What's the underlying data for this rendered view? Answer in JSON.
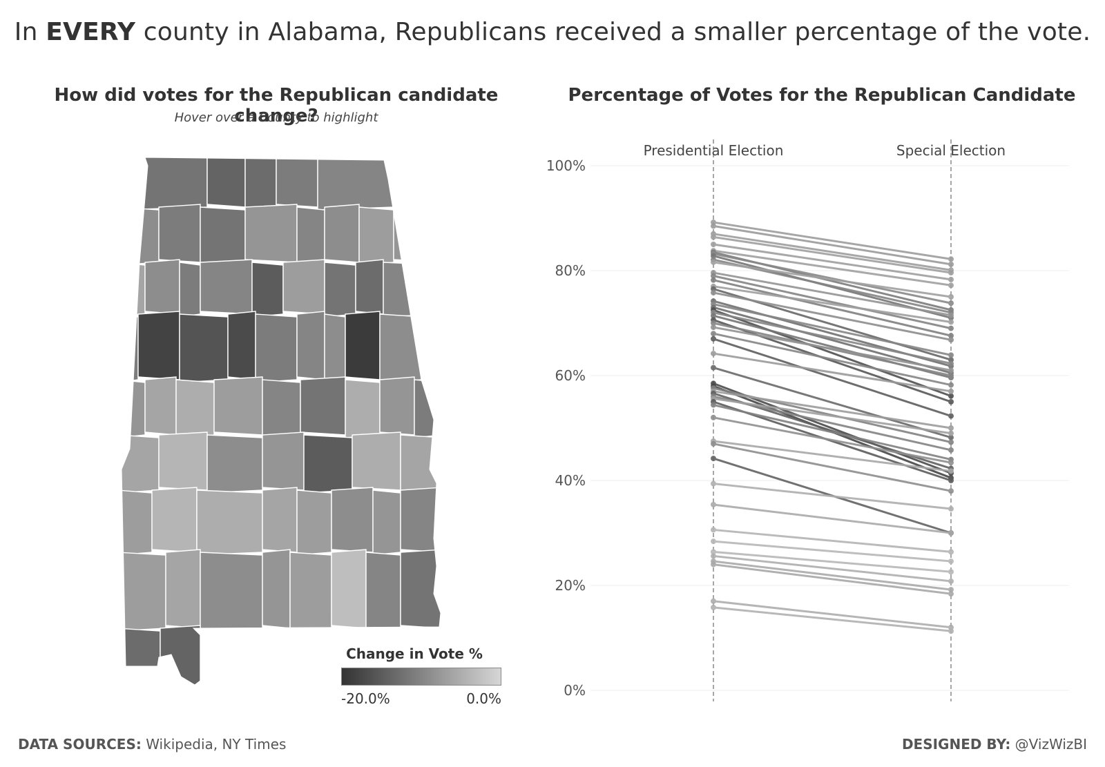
{
  "headline": {
    "prefix": "In ",
    "emphasis": "EVERY",
    "suffix": " county in Alabama, Republicans received a smaller percentage of the vote."
  },
  "map_panel": {
    "title": "How did votes for the Republican candidate change?",
    "subtitle": "Hover over a County to highlight",
    "legend": {
      "title": "Change in Vote %",
      "min_label": "-20.0%",
      "max_label": "0.0%",
      "color_low": "#333333",
      "color_high": "#d6d6d6"
    }
  },
  "slope_panel": {
    "title": "Percentage of Votes for the Republican Candidate"
  },
  "chart_data": {
    "type": "line",
    "subtype": "slope",
    "title": "Percentage of Votes for the Republican Candidate",
    "categories": [
      "Presidential Election",
      "Special Election"
    ],
    "y_ticks": [
      "0%",
      "20%",
      "40%",
      "60%",
      "80%",
      "100%"
    ],
    "ylim": [
      0,
      100
    ],
    "grid": true,
    "series": [
      {
        "values": [
          89.2,
          82.2
        ],
        "change": -7.0
      },
      {
        "values": [
          88.5,
          81.2
        ],
        "change": -7.3
      },
      {
        "values": [
          87.0,
          80.1
        ],
        "change": -6.9
      },
      {
        "values": [
          86.4,
          79.6
        ],
        "change": -6.8
      },
      {
        "values": [
          85.0,
          78.3
        ],
        "change": -6.7
      },
      {
        "values": [
          83.8,
          77.2
        ],
        "change": -6.6
      },
      {
        "values": [
          83.5,
          72.5
        ],
        "change": -11.0
      },
      {
        "values": [
          83.2,
          73.8
        ],
        "change": -9.4
      },
      {
        "values": [
          82.8,
          71.0
        ],
        "change": -11.8
      },
      {
        "values": [
          82.1,
          72.0
        ],
        "change": -10.1
      },
      {
        "values": [
          81.6,
          75.0
        ],
        "change": -6.6
      },
      {
        "values": [
          79.6,
          71.5
        ],
        "change": -8.1
      },
      {
        "values": [
          79.0,
          69.0
        ],
        "change": -10.0
      },
      {
        "values": [
          78.2,
          67.6
        ],
        "change": -10.6
      },
      {
        "values": [
          77.0,
          70.2
        ],
        "change": -6.8
      },
      {
        "values": [
          76.5,
          63.0
        ],
        "change": -13.5
      },
      {
        "values": [
          75.8,
          66.8
        ],
        "change": -9.0
      },
      {
        "values": [
          74.2,
          61.8
        ],
        "change": -12.4
      },
      {
        "values": [
          73.6,
          63.9
        ],
        "change": -9.7
      },
      {
        "values": [
          73.0,
          60.5
        ],
        "change": -12.5
      },
      {
        "values": [
          72.5,
          56.1
        ],
        "change": -16.4
      },
      {
        "values": [
          72.0,
          62.3
        ],
        "change": -9.7
      },
      {
        "values": [
          71.4,
          59.6
        ],
        "change": -11.8
      },
      {
        "values": [
          70.6,
          55.0
        ],
        "change": -15.6
      },
      {
        "values": [
          70.0,
          60.0
        ],
        "change": -10.0
      },
      {
        "values": [
          69.2,
          61.0
        ],
        "change": -8.2
      },
      {
        "values": [
          68.0,
          58.2
        ],
        "change": -9.8
      },
      {
        "values": [
          67.0,
          52.3
        ],
        "change": -14.7
      },
      {
        "values": [
          64.2,
          57.0
        ],
        "change": -7.2
      },
      {
        "values": [
          61.5,
          48.2
        ],
        "change": -13.3
      },
      {
        "values": [
          58.5,
          41.4
        ],
        "change": -17.1
      },
      {
        "values": [
          58.0,
          40.5
        ],
        "change": -17.5
      },
      {
        "values": [
          57.6,
          47.3
        ],
        "change": -10.3
      },
      {
        "values": [
          57.0,
          50.0
        ],
        "change": -7.0
      },
      {
        "values": [
          56.6,
          42.3
        ],
        "change": -14.3
      },
      {
        "values": [
          56.0,
          45.8
        ],
        "change": -10.2
      },
      {
        "values": [
          55.6,
          49.0
        ],
        "change": -6.6
      },
      {
        "values": [
          55.0,
          40.0
        ],
        "change": -15.0
      },
      {
        "values": [
          54.4,
          44.0
        ],
        "change": -10.4
      },
      {
        "values": [
          52.0,
          43.4
        ],
        "change": -8.6
      },
      {
        "values": [
          47.5,
          41.8
        ],
        "change": -5.7
      },
      {
        "values": [
          47.0,
          38.0
        ],
        "change": -9.0
      },
      {
        "values": [
          44.2,
          30.0
        ],
        "change": -14.2
      },
      {
        "values": [
          39.4,
          34.6
        ],
        "change": -4.8
      },
      {
        "values": [
          35.4,
          30.0
        ],
        "change": -5.4
      },
      {
        "values": [
          30.6,
          26.4
        ],
        "change": -4.2
      },
      {
        "values": [
          28.4,
          24.6
        ],
        "change": -3.8
      },
      {
        "values": [
          26.4,
          22.6
        ],
        "change": -3.8
      },
      {
        "values": [
          25.6,
          20.8
        ],
        "change": -4.8
      },
      {
        "values": [
          24.6,
          19.2
        ],
        "change": -5.4
      },
      {
        "values": [
          24.0,
          18.4
        ],
        "change": -5.6
      },
      {
        "values": [
          17.0,
          12.0
        ],
        "change": -5.0
      },
      {
        "values": [
          15.8,
          11.3
        ],
        "change": -4.5
      }
    ]
  },
  "map_data": {
    "counties_change": [
      -12,
      -14,
      -13,
      -11,
      -10,
      -9,
      -9,
      -11,
      -12,
      -8,
      -10,
      -9,
      -7,
      -8,
      -6,
      -9,
      -11,
      -10,
      -15,
      -7,
      -12,
      -13,
      -10,
      -11,
      -18,
      -16,
      -17,
      -11,
      -10,
      -9,
      -19,
      -9,
      -4,
      -8,
      -6,
      -5,
      -7,
      -10,
      -12,
      -5,
      -8,
      -11,
      -6,
      -4,
      -9,
      -8,
      -15,
      -5,
      -6,
      -7,
      -4,
      -5,
      -6,
      -7,
      -9,
      -8,
      -10,
      -7,
      -6,
      -9,
      -8,
      -7,
      -3,
      -10,
      -12,
      -13,
      -14
    ]
  },
  "footer": {
    "sources_label": "DATA SOURCES:",
    "sources_value": " Wikipedia, NY Times",
    "designer_label": "DESIGNED BY:",
    "designer_value": " @VizWizBI"
  }
}
